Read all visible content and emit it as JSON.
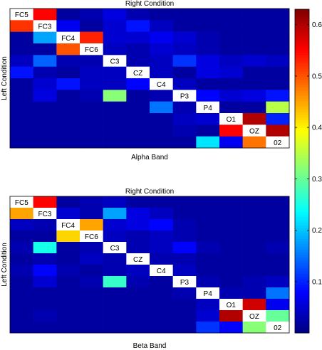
{
  "chart_data": [
    {
      "type": "heatmap",
      "title": "Right Condition",
      "xlabel": "Alpha Band",
      "ylabel": "Left Condition",
      "channels": [
        "FC5",
        "FC3",
        "FC4",
        "FC6",
        "C3",
        "CZ",
        "C4",
        "P3",
        "P4",
        "O1",
        "OZ",
        "02"
      ],
      "diagonal_empty": true,
      "values": [
        [
          null,
          0.55,
          0.02,
          0.03,
          0.06,
          0.03,
          0.02,
          0.02,
          0.02,
          0.02,
          0.02,
          0.02
        ],
        [
          0.52,
          null,
          0.07,
          0.02,
          0.05,
          0.09,
          0.04,
          0.02,
          0.02,
          0.02,
          0.02,
          0.02
        ],
        [
          0.02,
          0.18,
          null,
          0.53,
          0.05,
          0.05,
          0.07,
          0.05,
          0.03,
          0.02,
          0.02,
          0.02
        ],
        [
          0.02,
          0.02,
          0.5,
          null,
          0.04,
          0.03,
          0.05,
          0.04,
          0.03,
          0.02,
          0.02,
          0.02
        ],
        [
          0.04,
          0.14,
          0.03,
          0.03,
          null,
          0.03,
          0.04,
          0.11,
          0.06,
          0.04,
          0.05,
          0.04
        ],
        [
          0.09,
          0.03,
          0.02,
          0.04,
          0.04,
          null,
          0.04,
          0.02,
          0.06,
          0.05,
          0.02,
          0.02
        ],
        [
          0.02,
          0.05,
          0.09,
          0.04,
          0.04,
          0.08,
          null,
          0.04,
          0.02,
          0.02,
          0.02,
          0.02
        ],
        [
          0.02,
          0.06,
          0.02,
          0.03,
          0.32,
          0.02,
          0.03,
          null,
          0.08,
          0.05,
          0.06,
          0.09
        ],
        [
          0.02,
          0.02,
          0.02,
          0.02,
          0.02,
          0.02,
          0.15,
          0.03,
          null,
          0.02,
          0.02,
          0.35
        ],
        [
          0.02,
          0.02,
          0.02,
          0.02,
          0.02,
          0.02,
          0.02,
          0.04,
          0.05,
          null,
          0.6,
          0.1
        ],
        [
          0.02,
          0.02,
          0.02,
          0.02,
          0.02,
          0.02,
          0.02,
          0.03,
          0.02,
          0.55,
          null,
          0.6
        ],
        [
          0.02,
          0.02,
          0.02,
          0.02,
          0.02,
          0.02,
          0.02,
          0.02,
          0.22,
          0.07,
          0.48,
          null
        ]
      ]
    },
    {
      "type": "heatmap",
      "title": "Right Condition",
      "xlabel": "Beta Band",
      "ylabel": "Left Condition",
      "channels": [
        "FC5",
        "FC3",
        "FC4",
        "FC6",
        "C3",
        "CZ",
        "C4",
        "P3",
        "P4",
        "O1",
        "OZ",
        "02"
      ],
      "diagonal_empty": true,
      "values": [
        [
          null,
          0.55,
          0.02,
          0.03,
          0.04,
          0.02,
          0.02,
          0.02,
          0.02,
          0.02,
          0.02,
          0.02
        ],
        [
          0.45,
          null,
          0.05,
          0.03,
          0.18,
          0.06,
          0.04,
          0.02,
          0.02,
          0.02,
          0.02,
          0.02
        ],
        [
          0.04,
          0.03,
          null,
          0.45,
          0.05,
          0.06,
          0.08,
          0.03,
          0.02,
          0.02,
          0.02,
          0.02
        ],
        [
          0.02,
          0.02,
          0.42,
          null,
          0.04,
          0.03,
          0.04,
          0.03,
          0.02,
          0.02,
          0.02,
          0.02
        ],
        [
          0.03,
          0.25,
          0.02,
          0.03,
          null,
          0.03,
          0.04,
          0.08,
          0.03,
          0.02,
          0.02,
          0.03
        ],
        [
          0.02,
          0.03,
          0.02,
          0.04,
          0.03,
          null,
          0.03,
          0.03,
          0.02,
          0.02,
          0.02,
          0.02
        ],
        [
          0.03,
          0.08,
          0.03,
          0.02,
          0.03,
          0.04,
          null,
          0.04,
          0.02,
          0.02,
          0.02,
          0.02
        ],
        [
          0.02,
          0.05,
          0.02,
          0.03,
          0.27,
          0.03,
          0.02,
          null,
          0.03,
          0.02,
          0.03,
          0.04
        ],
        [
          0.02,
          0.02,
          0.02,
          0.02,
          0.02,
          0.02,
          0.02,
          0.03,
          null,
          0.03,
          0.03,
          0.15
        ],
        [
          0.02,
          0.02,
          0.02,
          0.02,
          0.02,
          0.02,
          0.02,
          0.02,
          0.04,
          null,
          0.58,
          0.07
        ],
        [
          0.02,
          0.03,
          0.02,
          0.02,
          0.02,
          0.02,
          0.02,
          0.02,
          0.05,
          0.6,
          null,
          0.3
        ],
        [
          0.02,
          0.02,
          0.02,
          0.02,
          0.02,
          0.02,
          0.02,
          0.02,
          0.11,
          0.08,
          0.32,
          null
        ]
      ]
    }
  ],
  "colorbar": {
    "ticks": [
      {
        "value": 0.1,
        "label": "0.1"
      },
      {
        "value": 0.2,
        "label": "0.2"
      },
      {
        "value": 0.3,
        "label": "0.3"
      },
      {
        "value": 0.4,
        "label": "0.4"
      },
      {
        "value": 0.5,
        "label": "0.5"
      },
      {
        "value": 0.6,
        "label": "0.6"
      }
    ],
    "range": [
      0,
      0.63
    ],
    "colormap": "jet"
  }
}
